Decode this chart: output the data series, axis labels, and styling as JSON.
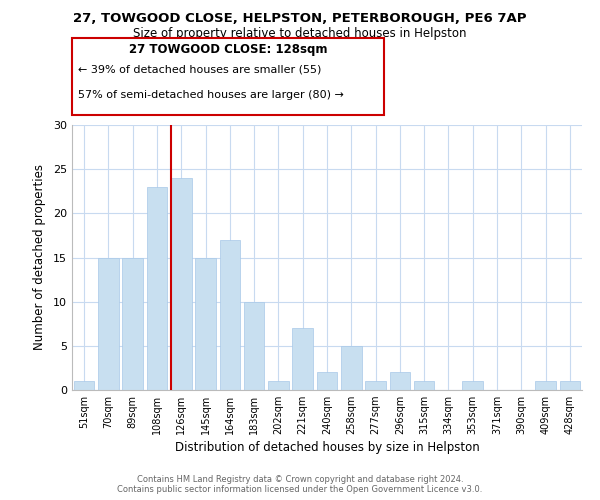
{
  "title": "27, TOWGOOD CLOSE, HELPSTON, PETERBOROUGH, PE6 7AP",
  "subtitle": "Size of property relative to detached houses in Helpston",
  "xlabel": "Distribution of detached houses by size in Helpston",
  "ylabel": "Number of detached properties",
  "bar_labels": [
    "51sqm",
    "70sqm",
    "89sqm",
    "108sqm",
    "126sqm",
    "145sqm",
    "164sqm",
    "183sqm",
    "202sqm",
    "221sqm",
    "240sqm",
    "258sqm",
    "277sqm",
    "296sqm",
    "315sqm",
    "334sqm",
    "353sqm",
    "371sqm",
    "390sqm",
    "409sqm",
    "428sqm"
  ],
  "bar_values": [
    1,
    15,
    15,
    23,
    24,
    15,
    17,
    10,
    1,
    7,
    2,
    5,
    1,
    2,
    1,
    0,
    1,
    0,
    0,
    1,
    1
  ],
  "bar_color": "#c8dff0",
  "bar_edge_color": "#a8c8e8",
  "vline_bar_index": 4,
  "vline_color": "#cc0000",
  "ylim": [
    0,
    30
  ],
  "yticks": [
    0,
    5,
    10,
    15,
    20,
    25,
    30
  ],
  "annotation_title": "27 TOWGOOD CLOSE: 128sqm",
  "annotation_line1": "← 39% of detached houses are smaller (55)",
  "annotation_line2": "57% of semi-detached houses are larger (80) →",
  "footer1": "Contains HM Land Registry data © Crown copyright and database right 2024.",
  "footer2": "Contains public sector information licensed under the Open Government Licence v3.0.",
  "background_color": "#ffffff",
  "grid_color": "#c8daf0"
}
